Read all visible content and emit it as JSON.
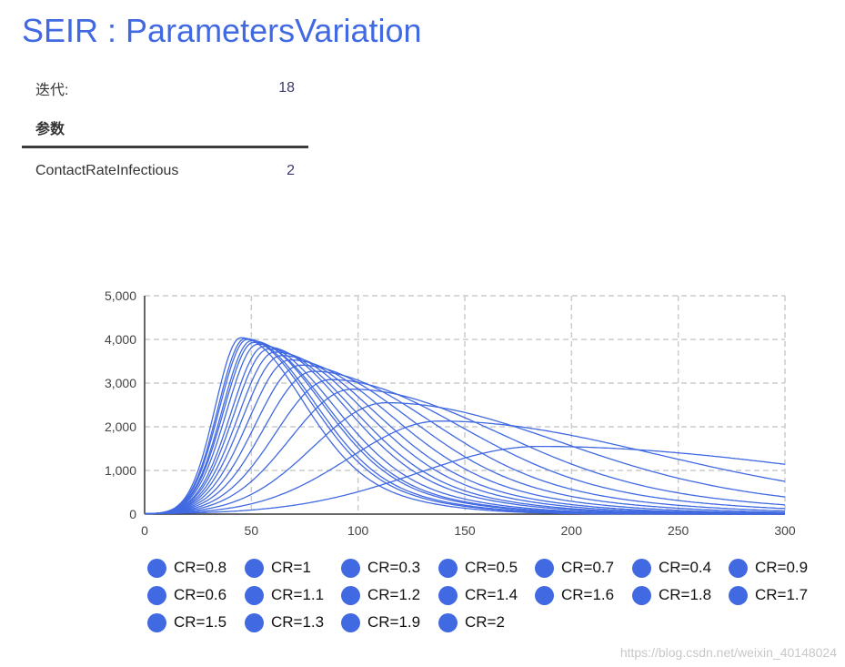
{
  "page": {
    "title": "SEIR : ParametersVariation"
  },
  "stats": {
    "iteration_label": "迭代:",
    "iteration_value": "18",
    "params_header": "参数",
    "param_name": "ContactRateInfectious",
    "param_value": "2"
  },
  "colors": {
    "accent": "#4169e1",
    "series": "#4169e1",
    "grid": "#cccccc"
  },
  "chart_data": {
    "type": "line",
    "title": "",
    "xlabel": "",
    "ylabel": "",
    "xlim": [
      0,
      300
    ],
    "ylim": [
      0,
      5000
    ],
    "x_ticks": [
      "0",
      "50",
      "100",
      "150",
      "200",
      "250",
      "300"
    ],
    "y_ticks": [
      "0",
      "1,000",
      "2,000",
      "3,000",
      "4,000",
      "5,000"
    ],
    "grid": true,
    "legend_position": "bottom",
    "series": [
      {
        "name": "CR=0.8",
        "cr": 0.8
      },
      {
        "name": "CR=1",
        "cr": 1.0
      },
      {
        "name": "CR=0.3",
        "cr": 0.3
      },
      {
        "name": "CR=0.5",
        "cr": 0.5
      },
      {
        "name": "CR=0.7",
        "cr": 0.7
      },
      {
        "name": "CR=0.4",
        "cr": 0.4
      },
      {
        "name": "CR=0.9",
        "cr": 0.9
      },
      {
        "name": "CR=0.6",
        "cr": 0.6
      },
      {
        "name": "CR=1.1",
        "cr": 1.1
      },
      {
        "name": "CR=1.2",
        "cr": 1.2
      },
      {
        "name": "CR=1.4",
        "cr": 1.4
      },
      {
        "name": "CR=1.6",
        "cr": 1.6
      },
      {
        "name": "CR=1.8",
        "cr": 1.8
      },
      {
        "name": "CR=1.7",
        "cr": 1.7
      },
      {
        "name": "CR=1.5",
        "cr": 1.5
      },
      {
        "name": "CR=1.3",
        "cr": 1.3
      },
      {
        "name": "CR=1.9",
        "cr": 1.9
      },
      {
        "name": "CR=2",
        "cr": 2.0
      }
    ],
    "peaks": [
      {
        "cr": 0.3,
        "peak_x": 185,
        "peak_y": 1550
      },
      {
        "cr": 0.4,
        "peak_x": 138,
        "peak_y": 2130
      },
      {
        "cr": 0.5,
        "peak_x": 113,
        "peak_y": 2550
      },
      {
        "cr": 0.6,
        "peak_x": 97,
        "peak_y": 2860
      },
      {
        "cr": 0.7,
        "peak_x": 87,
        "peak_y": 3080
      },
      {
        "cr": 0.8,
        "peak_x": 79,
        "peak_y": 3270
      },
      {
        "cr": 0.9,
        "peak_x": 73,
        "peak_y": 3410
      },
      {
        "cr": 1.0,
        "peak_x": 68,
        "peak_y": 3530
      },
      {
        "cr": 1.1,
        "peak_x": 64,
        "peak_y": 3630
      },
      {
        "cr": 1.2,
        "peak_x": 61,
        "peak_y": 3710
      },
      {
        "cr": 1.3,
        "peak_x": 58,
        "peak_y": 3780
      },
      {
        "cr": 1.4,
        "peak_x": 56,
        "peak_y": 3840
      },
      {
        "cr": 1.5,
        "peak_x": 53,
        "peak_y": 3890
      },
      {
        "cr": 1.6,
        "peak_x": 51,
        "peak_y": 3930
      },
      {
        "cr": 1.7,
        "peak_x": 50,
        "peak_y": 3970
      },
      {
        "cr": 1.8,
        "peak_x": 48,
        "peak_y": 4000
      },
      {
        "cr": 1.9,
        "peak_x": 47,
        "peak_y": 4020
      },
      {
        "cr": 2.0,
        "peak_x": 45,
        "peak_y": 4040
      }
    ]
  },
  "watermark": "https://blog.csdn.net/weixin_40148024"
}
